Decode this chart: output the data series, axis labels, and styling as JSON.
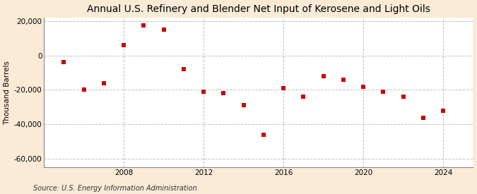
{
  "title": "Annual U.S. Refinery and Blender Net Input of Kerosene and Light Oils",
  "ylabel": "Thousand Barrels",
  "source": "Source: U.S. Energy Information Administration",
  "years": [
    2005,
    2006,
    2007,
    2008,
    2009,
    2010,
    2011,
    2012,
    2013,
    2014,
    2015,
    2016,
    2017,
    2018,
    2019,
    2020,
    2021,
    2022,
    2023,
    2024
  ],
  "values": [
    -4000,
    -20000,
    -16000,
    6000,
    17500,
    15000,
    -8000,
    -21000,
    -22000,
    -29000,
    -46000,
    -19000,
    -24000,
    -12000,
    -14000,
    -18000,
    -21000,
    -24000,
    -36000,
    -32000
  ],
  "marker_color": "#cc0000",
  "bg_color": "#faebd7",
  "plot_bg_color": "#ffffff",
  "grid_color": "#bbbbbb",
  "title_fontsize": 10,
  "label_fontsize": 7.5,
  "tick_fontsize": 7.5,
  "source_fontsize": 7,
  "ylim": [
    -65000,
    22000
  ],
  "yticks": [
    -60000,
    -40000,
    -20000,
    0,
    20000
  ],
  "xticks": [
    2008,
    2012,
    2016,
    2020,
    2024
  ],
  "xlim": [
    2004.0,
    2025.5
  ]
}
